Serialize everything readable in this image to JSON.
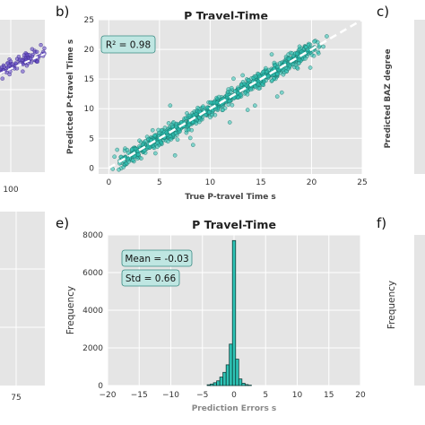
{
  "panels": {
    "b_label": "b)",
    "c_label": "c)",
    "e_label": "e)",
    "f_label": "f)"
  },
  "colors": {
    "teal": "#2ec4b6",
    "teal_edge": "#1b6e66",
    "purple": "#6a52c9",
    "panel_bg": "#e5e5e5",
    "grid": "#ffffff",
    "annot_bg": "#bfe6e2"
  },
  "left_partial": {
    "top_tick": "100",
    "bottom_tick": "75"
  },
  "right_partial": {
    "c_ylabel": "Predicted BAZ degree",
    "f_ylabel": "Frequency"
  },
  "chart_data": [
    {
      "id": "b",
      "type": "scatter",
      "title": "P Travel-Time",
      "xlabel": "True P-travel Time s",
      "ylabel": "Predicted P-travel Time s",
      "xlim": [
        -1,
        25
      ],
      "ylim": [
        -1,
        25
      ],
      "xticks": [
        0,
        5,
        10,
        15,
        20,
        25
      ],
      "yticks": [
        0,
        5,
        10,
        15,
        20,
        25
      ],
      "annotation": "R² = 0.98",
      "reference_line": {
        "from": [
          0,
          0
        ],
        "to": [
          25,
          25
        ],
        "style": "dashed",
        "color": "#ffffff"
      },
      "grid": true
    },
    {
      "id": "e",
      "type": "bar",
      "title": "P Travel-Time",
      "xlabel": "Prediction Errors s",
      "ylabel": "Frequency",
      "xlim": [
        -20,
        20
      ],
      "ylim": [
        0,
        8000
      ],
      "xticks": [
        -20,
        -15,
        -10,
        -5,
        0,
        5,
        10,
        15,
        20
      ],
      "yticks": [
        0,
        2000,
        4000,
        6000,
        8000
      ],
      "bin_width": 0.5,
      "bins": [
        {
          "x": -4.0,
          "count": 40
        },
        {
          "x": -3.5,
          "count": 80
        },
        {
          "x": -3.0,
          "count": 150
        },
        {
          "x": -2.5,
          "count": 250
        },
        {
          "x": -2.0,
          "count": 450
        },
        {
          "x": -1.5,
          "count": 700
        },
        {
          "x": -1.0,
          "count": 1100
        },
        {
          "x": -0.5,
          "count": 2200
        },
        {
          "x": 0.0,
          "count": 7700
        },
        {
          "x": 0.5,
          "count": 1400
        },
        {
          "x": 1.0,
          "count": 350
        },
        {
          "x": 1.5,
          "count": 120
        },
        {
          "x": 2.0,
          "count": 50
        },
        {
          "x": 2.5,
          "count": 20
        }
      ],
      "annotations": [
        "Mean = -0.03",
        "Std = 0.66"
      ],
      "grid": true
    }
  ]
}
